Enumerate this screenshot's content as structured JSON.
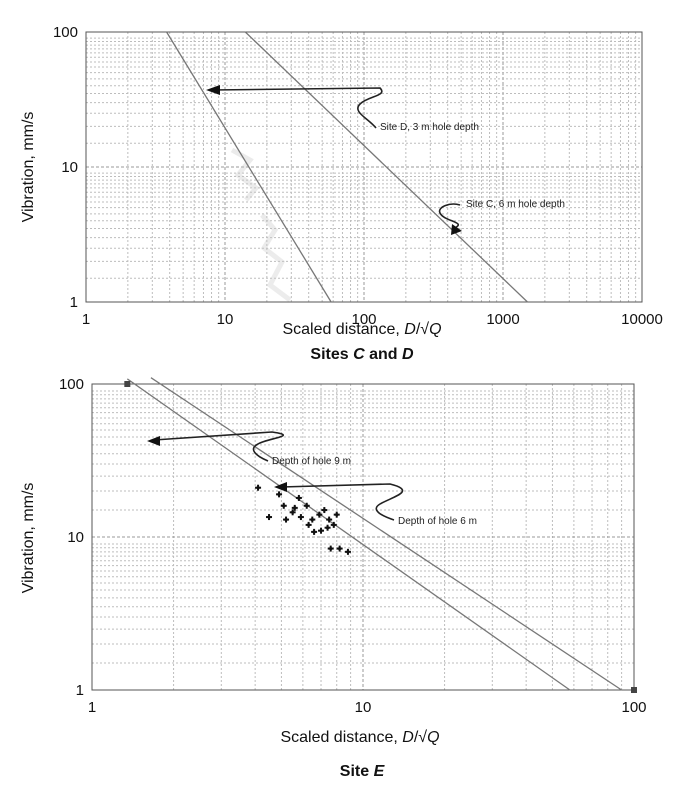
{
  "chart_data": [
    {
      "type": "line",
      "caption": "Sites C and D",
      "xlabel": "Scaled distance, D/√Q",
      "ylabel": "Vibration, mm/s",
      "xscale": "log",
      "yscale": "log",
      "xlim": [
        1,
        10000
      ],
      "ylim": [
        1,
        100
      ],
      "xticks": [
        "1",
        "10",
        "100",
        "1000",
        "10000"
      ],
      "yticks": [
        "1",
        "10",
        "100"
      ],
      "grid": true,
      "series": [
        {
          "name": "Site D, 3 m hole depth",
          "x": [
            3.8,
            58
          ],
          "y": [
            100,
            1
          ]
        },
        {
          "name": "Site C, 6 m hole depth",
          "x": [
            14,
            1500
          ],
          "y": [
            100,
            1
          ]
        }
      ],
      "annotations": [
        {
          "text": "Site D, 3 m hole depth",
          "target": [
            7,
            36
          ]
        },
        {
          "text": "Site C, 6 m hole depth",
          "target": [
            550,
            3.4
          ]
        }
      ]
    },
    {
      "type": "scatter",
      "caption": "Site E",
      "xlabel": "Scaled distance, D/√Q",
      "ylabel": "Vibration, mm/s",
      "xscale": "log",
      "yscale": "log",
      "xlim": [
        1,
        100
      ],
      "ylim": [
        1,
        100
      ],
      "xticks": [
        "1",
        "10",
        "100"
      ],
      "yticks": [
        "1",
        "10",
        "100"
      ],
      "grid": true,
      "series": [
        {
          "name": "Depth of hole 9 m",
          "x": [
            1.35,
            58
          ],
          "y": [
            108,
            1
          ]
        },
        {
          "name": "Depth of hole 6 m",
          "x": [
            1.65,
            90
          ],
          "y": [
            110,
            1
          ]
        }
      ],
      "points": {
        "x": [
          4.1,
          4.9,
          5.1,
          5.5,
          5.8,
          6.2,
          4.5,
          5.2,
          5.6,
          5.9,
          6.5,
          6.9,
          7.2,
          7.5,
          7.8,
          8.0,
          6.3,
          7.0,
          7.4,
          8.2,
          8.8,
          7.6,
          6.6
        ],
        "y": [
          21,
          19,
          16,
          14.5,
          18,
          16,
          13.5,
          13,
          15.5,
          13.5,
          13,
          14,
          15,
          13,
          12,
          14,
          12,
          11,
          11.5,
          8.4,
          8,
          8.4,
          10.8
        ]
      },
      "annotations": [
        {
          "text": "Depth of hole 9 m",
          "target": [
            2.0,
            67
          ]
        },
        {
          "text": "Depth of hole 6 m",
          "target": [
            5.8,
            30
          ]
        }
      ]
    }
  ],
  "charts": [
    {
      "caption_prefix": "Sites ",
      "caption_a": "C",
      "caption_mid": " and ",
      "caption_b": "D",
      "xlabel_prefix": "Scaled distance, ",
      "xlabel_var": "D",
      "xlabel_suffix": "/√",
      "xlabel_var2": "Q",
      "ylabel": "Vibration, mm/s",
      "annot1": "Site D, 3 m hole depth",
      "annot2": "Site C, 6 m hole depth"
    },
    {
      "caption_prefix": "Site ",
      "caption_a": "E",
      "xlabel_prefix": "Scaled distance, ",
      "xlabel_var": "D",
      "xlabel_suffix": "/√",
      "xlabel_var2": "Q",
      "ylabel": "Vibration, mm/s",
      "annot1": "Depth of hole 9 m",
      "annot2": "Depth of hole 6 m"
    }
  ]
}
